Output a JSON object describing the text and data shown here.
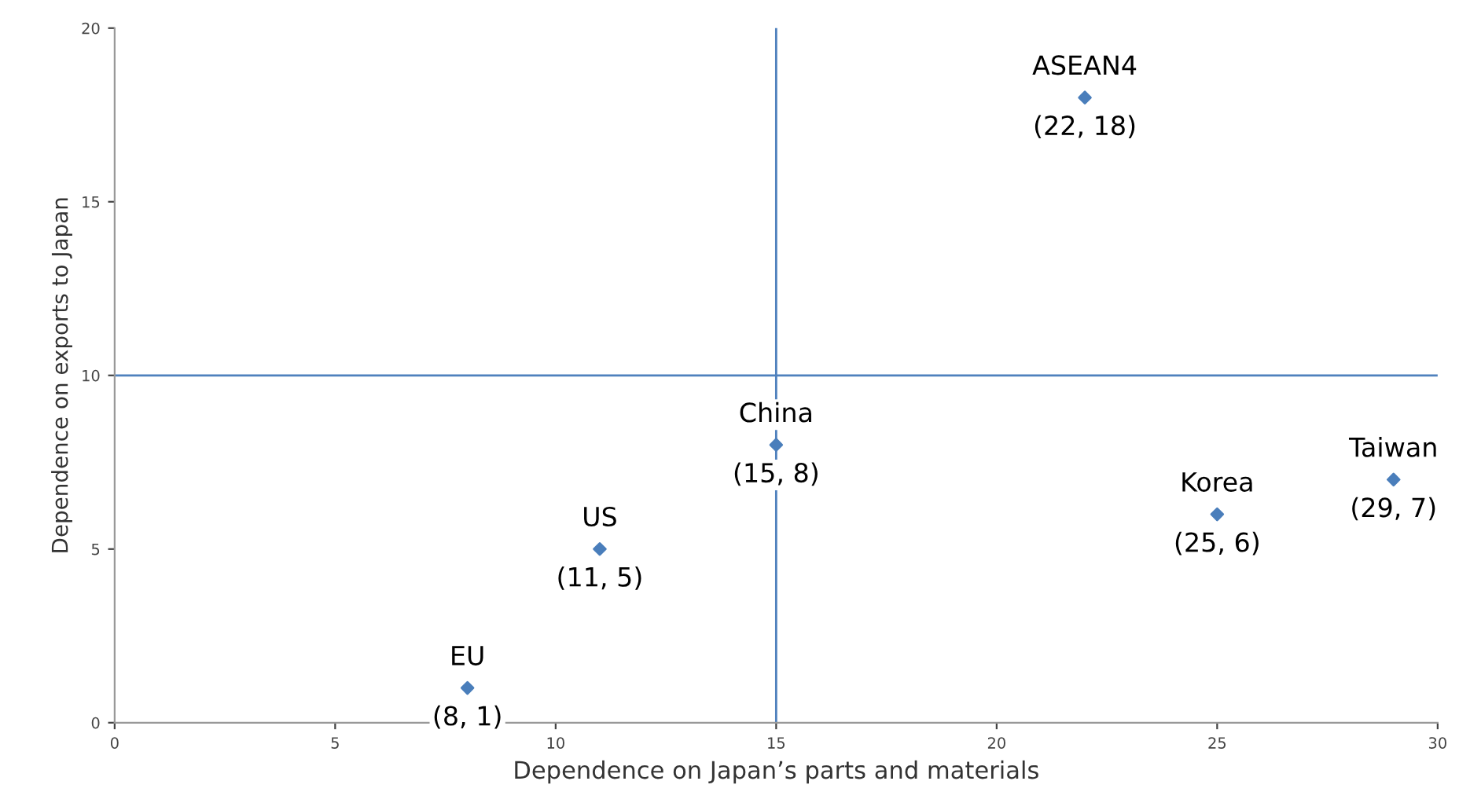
{
  "chart_data": {
    "type": "scatter",
    "xlabel": "Dependence on Japan’s parts and materials",
    "ylabel": "Dependence on exports to Japan",
    "x": [
      8,
      11,
      15,
      22,
      25,
      29
    ],
    "values": [
      1,
      5,
      8,
      18,
      6,
      7
    ],
    "color": "#4a7ebb",
    "marker": "diamond",
    "xlim": [
      0,
      30
    ],
    "ylim": [
      0,
      20
    ],
    "xticks": [
      0,
      5,
      10,
      15,
      20,
      25,
      30
    ],
    "yticks": [
      0,
      5,
      10,
      15,
      20
    ],
    "grid": false,
    "legend": false,
    "ref_lines": [
      {
        "axis": "x",
        "value": 15,
        "color": "#4f81bd"
      },
      {
        "axis": "y",
        "value": 10,
        "color": "#4f81bd"
      }
    ],
    "annotations": [
      {
        "text": "EU",
        "x": 8,
        "y": 1
      },
      {
        "text": "(8, 1)",
        "x": 8,
        "y": 1
      },
      {
        "text": "US",
        "x": 11,
        "y": 5
      },
      {
        "text": "(11, 5)",
        "x": 11,
        "y": 5
      },
      {
        "text": "China",
        "x": 15,
        "y": 8
      },
      {
        "text": "(15, 8)",
        "x": 15,
        "y": 8
      },
      {
        "text": "ASEAN4",
        "x": 22,
        "y": 18
      },
      {
        "text": "(22, 18)",
        "x": 22,
        "y": 18
      },
      {
        "text": "Korea",
        "x": 25,
        "y": 6
      },
      {
        "text": "(25, 6)",
        "x": 25,
        "y": 6
      },
      {
        "text": "Taiwan",
        "x": 29,
        "y": 7
      },
      {
        "text": "(29, 7)",
        "x": 29,
        "y": 7
      }
    ]
  }
}
